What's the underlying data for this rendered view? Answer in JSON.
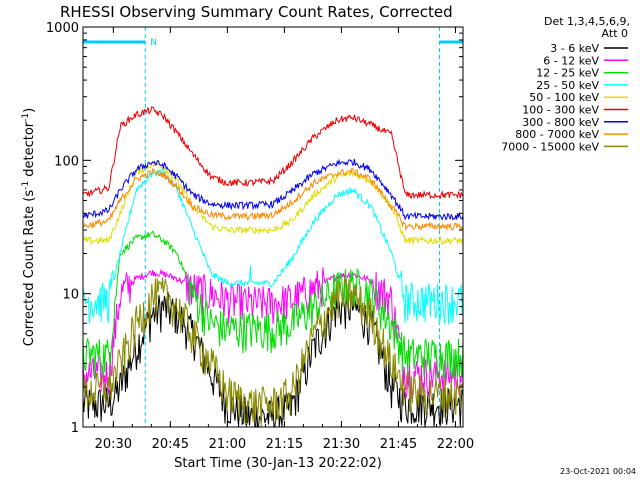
{
  "chart_data": {
    "type": "line",
    "title": "RHESSI Observing Summary Count Rates, Corrected",
    "xlabel": "Start Time (30-Jan-13 20:22:02)",
    "ylabel_main": "Corrected Count Rate (s",
    "ylabel_sup1": "-1",
    "ylabel_mid": " detector",
    "ylabel_sup2": "-1",
    "ylabel_end": ")",
    "y_scale": "log",
    "ylim": [
      1,
      1000
    ],
    "xlim_minutes": [
      20.367,
      22.033
    ],
    "xtick_labels": [
      "20:30",
      "20:45",
      "21:00",
      "21:15",
      "21:30",
      "21:45",
      "22:00"
    ],
    "xtick_minutes": [
      20.5,
      20.75,
      21.0,
      21.25,
      21.5,
      21.75,
      22.0
    ],
    "ytick_labels": [
      "1",
      "10",
      "100",
      "1000"
    ],
    "ytick_values": [
      1,
      10,
      100,
      1000
    ],
    "legend_header": [
      "Det 1,3,4,5,6,9,",
      "Att 0"
    ],
    "legend_placement": "right",
    "footer_stamp": "23-Oct-2021 00:04",
    "night_marker": "N",
    "night_intervals": [
      [
        20.367,
        20.64
      ],
      [
        21.93,
        22.033
      ]
    ],
    "series": [
      {
        "name": "3 - 6 keV",
        "color": "#000000",
        "base": 1.5,
        "x": [
          20.367,
          20.48,
          20.53,
          20.6,
          20.67,
          20.72,
          20.78,
          20.85,
          20.93,
          21.0,
          21.1,
          21.2,
          21.28,
          21.38,
          21.48,
          21.55,
          21.63,
          21.72,
          21.78,
          21.85,
          22.0
        ],
        "y": [
          1.5,
          1.5,
          2.0,
          4.0,
          7.0,
          8.0,
          7.0,
          5.0,
          2.5,
          1.5,
          1.2,
          1.2,
          1.4,
          4.0,
          8.0,
          8.0,
          6.0,
          2.0,
          1.5,
          1.5,
          1.5
        ]
      },
      {
        "name": "6 - 12 keV",
        "color": "#ff00ff",
        "base": 2.5,
        "x": [
          20.367,
          20.48,
          20.53,
          20.6,
          20.67,
          20.72,
          20.78,
          20.85,
          20.93,
          21.0,
          21.1,
          21.2,
          21.28,
          21.38,
          21.48,
          21.55,
          21.63,
          21.72,
          21.78,
          21.85,
          22.0
        ],
        "y": [
          2.5,
          2.5,
          10.0,
          13.0,
          14.5,
          14.0,
          13.0,
          11.0,
          10.0,
          9.0,
          8.5,
          8.5,
          9.0,
          11.0,
          13.5,
          14.0,
          12.5,
          9.0,
          2.5,
          2.5,
          2.5
        ]
      },
      {
        "name": "12 - 25 keV",
        "color": "#00dd00",
        "base": 3.5,
        "x": [
          20.367,
          20.48,
          20.53,
          20.6,
          20.67,
          20.72,
          20.78,
          20.85,
          20.93,
          21.0,
          21.1,
          21.2,
          21.28,
          21.38,
          21.48,
          21.55,
          21.63,
          21.72,
          21.78,
          21.85,
          22.0
        ],
        "y": [
          3.5,
          3.5,
          20.0,
          26.0,
          28.0,
          25.0,
          20.0,
          10.0,
          6.0,
          5.5,
          5.5,
          5.5,
          6.0,
          8.0,
          11.0,
          12.0,
          10.0,
          6.0,
          3.5,
          3.5,
          3.5
        ]
      },
      {
        "name": "25 - 50 keV",
        "color": "#00ffff",
        "base": 9.0,
        "x": [
          20.367,
          20.48,
          20.53,
          20.6,
          20.67,
          20.72,
          20.78,
          20.85,
          20.93,
          21.0,
          21.1,
          21.2,
          21.28,
          21.38,
          21.48,
          21.55,
          21.63,
          21.72,
          21.78,
          21.85,
          22.0
        ],
        "y": [
          9.0,
          9.0,
          20.0,
          60.0,
          80.0,
          82.0,
          60.0,
          30.0,
          14.0,
          12.0,
          12.0,
          12.0,
          18.0,
          35.0,
          55.0,
          60.0,
          45.0,
          20.0,
          9.0,
          9.0,
          9.0
        ]
      },
      {
        "name": "50 - 100 keV",
        "color": "#dddd00",
        "base": 25.0,
        "x": [
          20.367,
          20.48,
          20.53,
          20.6,
          20.67,
          20.72,
          20.78,
          20.85,
          20.93,
          21.0,
          21.1,
          21.2,
          21.28,
          21.38,
          21.48,
          21.55,
          21.63,
          21.72,
          21.78,
          21.85,
          22.0
        ],
        "y": [
          25.0,
          25.0,
          40.0,
          80.0,
          95.0,
          90.0,
          70.0,
          45.0,
          32.0,
          30.0,
          30.0,
          30.0,
          35.0,
          55.0,
          75.0,
          80.0,
          70.0,
          45.0,
          25.0,
          25.0,
          25.0
        ]
      },
      {
        "name": "100 - 300 keV",
        "color": "#ee0000",
        "base": 55.0,
        "x": [
          20.367,
          20.48,
          20.53,
          20.6,
          20.67,
          20.72,
          20.78,
          20.85,
          20.93,
          21.0,
          21.1,
          21.2,
          21.28,
          21.38,
          21.48,
          21.55,
          21.63,
          21.72,
          21.78,
          21.85,
          22.0
        ],
        "y": [
          55.0,
          62.0,
          180.0,
          220.0,
          240.0,
          215.0,
          160.0,
          110.0,
          75.0,
          68.0,
          68.0,
          70.0,
          95.0,
          150.0,
          200.0,
          210.0,
          185.0,
          155.0,
          55.0,
          55.0,
          55.0
        ]
      },
      {
        "name": "300 - 800 keV",
        "color": "#0000ee",
        "base": 38.0,
        "x": [
          20.367,
          20.48,
          20.53,
          20.6,
          20.67,
          20.72,
          20.78,
          20.85,
          20.93,
          21.0,
          21.1,
          21.2,
          21.28,
          21.38,
          21.48,
          21.55,
          21.63,
          21.72,
          21.78,
          21.85,
          22.0
        ],
        "y": [
          38.0,
          42.0,
          60.0,
          85.0,
          97.0,
          92.0,
          75.0,
          55.0,
          47.0,
          46.0,
          46.0,
          47.0,
          58.0,
          80.0,
          95.0,
          98.0,
          85.0,
          55.0,
          38.0,
          38.0,
          38.0
        ]
      },
      {
        "name": "800 - 7000 keV",
        "color": "#ff8800",
        "base": 32.0,
        "x": [
          20.367,
          20.48,
          20.53,
          20.6,
          20.67,
          20.72,
          20.78,
          20.85,
          20.93,
          21.0,
          21.1,
          21.2,
          21.28,
          21.38,
          21.48,
          21.55,
          21.63,
          21.72,
          21.78,
          21.85,
          22.0
        ],
        "y": [
          32.0,
          35.0,
          50.0,
          72.0,
          82.0,
          78.0,
          63.0,
          45.0,
          39.0,
          38.0,
          38.0,
          39.0,
          48.0,
          68.0,
          80.0,
          83.0,
          72.0,
          45.0,
          32.0,
          32.0,
          32.0
        ]
      },
      {
        "name": "7000 - 15000 keV",
        "color": "#888800",
        "base": 2.0,
        "x": [
          20.367,
          20.48,
          20.53,
          20.6,
          20.67,
          20.72,
          20.78,
          20.85,
          20.93,
          21.0,
          21.1,
          21.2,
          21.28,
          21.38,
          21.48,
          21.55,
          21.63,
          21.72,
          21.78,
          21.85,
          22.0
        ],
        "y": [
          1.8,
          2.0,
          3.0,
          6.0,
          9.5,
          10.0,
          8.0,
          5.0,
          3.0,
          1.8,
          1.5,
          1.5,
          1.8,
          5.0,
          9.5,
          10.0,
          7.0,
          3.0,
          2.0,
          1.8,
          1.8
        ]
      }
    ]
  }
}
